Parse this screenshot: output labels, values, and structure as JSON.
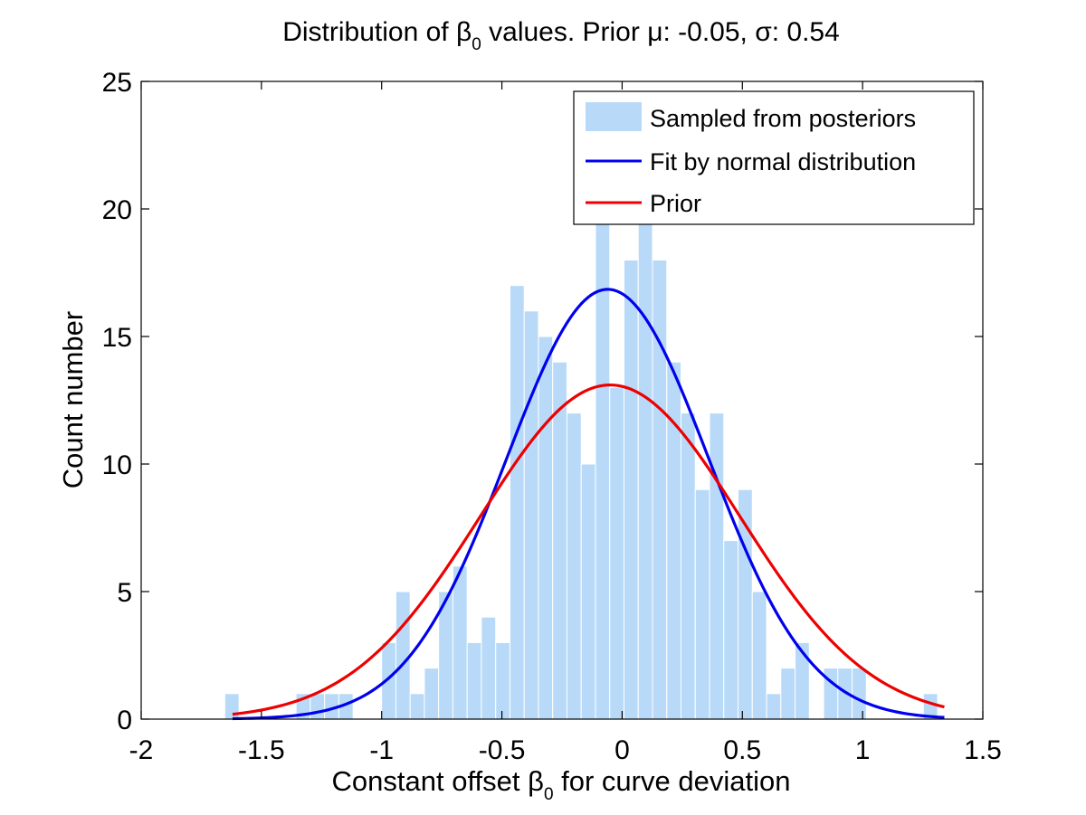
{
  "chart_data": {
    "type": "bar",
    "title": {
      "prefix": "Distribution of ",
      "beta": "β",
      "beta_sub": "0",
      "suffix": " values. Prior ",
      "mu_symbol": "μ",
      "mu_text": ": -0.05, ",
      "sigma_symbol": "σ",
      "sigma_text": ": 0.54"
    },
    "xlabel": {
      "prefix": "Constant offset ",
      "beta": "β",
      "beta_sub": "0",
      "suffix": " for curve deviation"
    },
    "ylabel": "Count number",
    "xlim": [
      -2,
      1.5
    ],
    "ylim": [
      0,
      25
    ],
    "x_ticks": [
      -2,
      -1.5,
      -1,
      -0.5,
      0,
      0.5,
      1,
      1.5
    ],
    "x_tick_labels": [
      "-2",
      "-1.5",
      "-1",
      "-0.5",
      "0",
      "0.5",
      "1",
      "1.5"
    ],
    "y_ticks": [
      0,
      5,
      10,
      15,
      20,
      25
    ],
    "y_tick_labels": [
      "0",
      "5",
      "10",
      "15",
      "20",
      "25"
    ],
    "bar_width": 0.0593,
    "bar_color": "#b8daf8",
    "histogram": {
      "x": [
        -1.6227,
        -1.5634,
        -1.5041,
        -1.4448,
        -1.3856,
        -1.3263,
        -1.267,
        -1.2077,
        -1.1484,
        -1.0891,
        -1.0298,
        -0.9705,
        -0.9112,
        -0.8519,
        -0.7927,
        -0.7334,
        -0.6741,
        -0.6148,
        -0.5555,
        -0.4962,
        -0.4369,
        -0.3776,
        -0.3183,
        -0.2591,
        -0.1998,
        -0.1405,
        -0.0812,
        -0.0219,
        0.0374,
        0.0967,
        0.156,
        0.2153,
        0.2746,
        0.3338,
        0.3931,
        0.4524,
        0.5117,
        0.571,
        0.6303,
        0.6896,
        0.7489,
        0.8082,
        0.8675,
        0.9267,
        0.986,
        1.0453,
        1.1046,
        1.1639,
        1.2232,
        1.2825
      ],
      "counts": [
        1,
        0,
        0,
        0,
        0,
        1,
        1,
        1,
        1,
        0,
        0,
        3,
        5,
        1,
        2,
        5,
        6,
        3,
        4,
        3,
        17,
        16,
        15,
        14,
        12,
        10,
        20,
        13,
        18,
        20,
        18,
        14,
        12,
        9,
        12,
        7,
        9,
        5,
        1,
        2,
        3,
        0,
        2,
        2,
        2,
        0,
        0,
        0,
        0,
        1
      ]
    },
    "series": [
      {
        "name": "Fit by normal distribution",
        "color": "#0000ee",
        "mu": -0.06,
        "sigma": 0.42,
        "peak": 16.85
      },
      {
        "name": "Prior",
        "color": "#ee0000",
        "mu": -0.05,
        "sigma": 0.54,
        "peak": 13.1
      }
    ],
    "curve_x_range": [
      -1.62,
      1.34
    ],
    "legend": {
      "position": "top-right",
      "entries": [
        {
          "label": "Sampled from posteriors",
          "kind": "patch",
          "color": "#b8daf8"
        },
        {
          "label": "Fit by normal distribution",
          "kind": "line",
          "color": "#0000ee"
        },
        {
          "label": "Prior",
          "kind": "line",
          "color": "#ee0000"
        }
      ]
    },
    "grid": false
  }
}
